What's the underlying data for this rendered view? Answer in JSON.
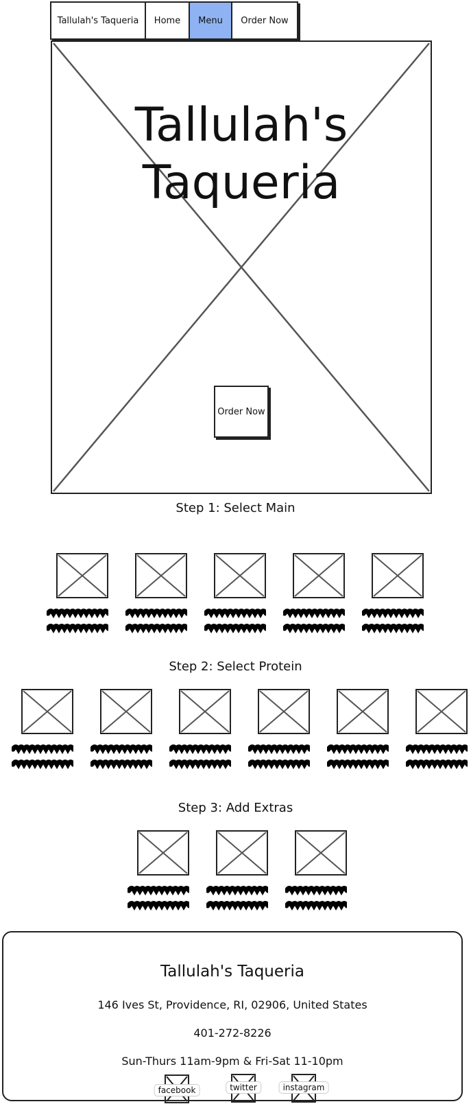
{
  "nav": {
    "items": [
      {
        "label": "Tallulah's Taqueria",
        "name": "nav-brand",
        "active": false
      },
      {
        "label": "Home",
        "name": "nav-home",
        "active": false
      },
      {
        "label": "Menu",
        "name": "nav-menu",
        "active": true
      },
      {
        "label": "Order Now",
        "name": "nav-order-now",
        "active": false
      }
    ],
    "active_color": "#8fb3f2"
  },
  "hero": {
    "title_line1": "Tallulah's",
    "title_line2": "Taqueria",
    "order_button": "Order Now"
  },
  "steps": [
    {
      "title": "Step 1: Select Main",
      "item_count": 5
    },
    {
      "title": "Step 2: Select Protein",
      "item_count": 6
    },
    {
      "title": "Step 3: Add Extras",
      "item_count": 3
    }
  ],
  "footer": {
    "name": "Tallulah's Taqueria",
    "address": "146 Ives St, Providence, RI, 02906, United States",
    "phone": "401-272-8226",
    "hours": "Sun-Thurs 11am-9pm & Fri-Sat 11-10pm",
    "social": [
      {
        "label": "facebook",
        "icon": "facebook-icon"
      },
      {
        "label": "twitter",
        "icon": "twitter-icon"
      },
      {
        "label": "instagram",
        "icon": "instagram-icon"
      }
    ]
  }
}
